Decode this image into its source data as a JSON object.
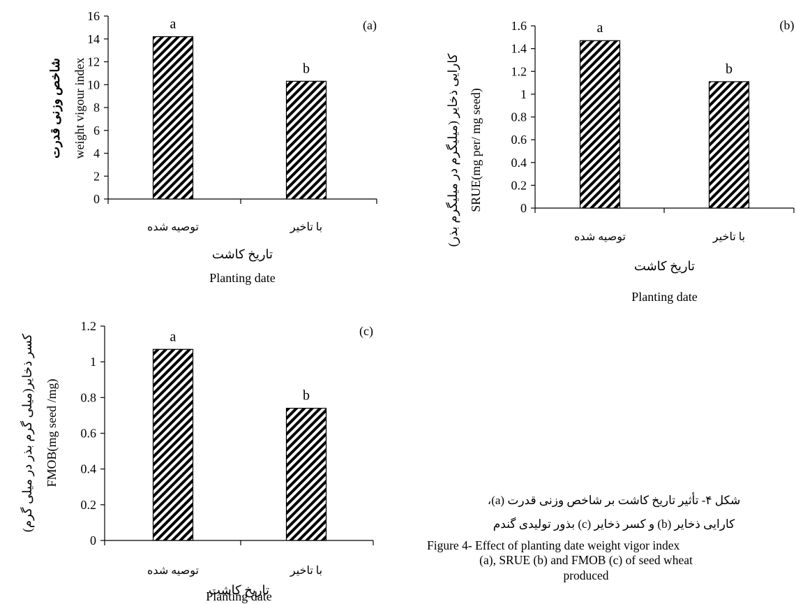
{
  "chart_data": [
    {
      "type": "bar",
      "panel_label": "(a)",
      "categories": [
        "توصیه شده",
        "با تاخیر"
      ],
      "values": [
        14.2,
        10.3
      ],
      "data_labels": [
        "a",
        "b"
      ],
      "ylim": [
        0,
        16
      ],
      "yticks": [
        "0",
        "2",
        "4",
        "6",
        "8",
        "10",
        "12",
        "14",
        "16"
      ],
      "ylabel_fa": "شاخص وزنی قدرت",
      "ylabel_en": "weight vigour index",
      "xlabel_fa": "تاریخ کاشت",
      "xlabel_en": "Planting date",
      "grid": false
    },
    {
      "type": "bar",
      "panel_label": "(b)",
      "categories": [
        "توصیه شده",
        "با تاخیر"
      ],
      "values": [
        1.47,
        1.11
      ],
      "data_labels": [
        "a",
        "b"
      ],
      "ylim": [
        0,
        1.6
      ],
      "yticks": [
        "0",
        "0.2",
        "0.4",
        "0.6",
        "0.8",
        "1",
        "1.2",
        "1.4",
        "1.6"
      ],
      "ylabel_fa": "کارایی ذخایر (میلیگرم در میلیگرم بذر)",
      "ylabel_en": "SRUE(mg per/ mg seed)",
      "xlabel_fa": "تاریخ کاشت",
      "xlabel_en": "Planting date",
      "grid": false
    },
    {
      "type": "bar",
      "panel_label": "(c)",
      "categories": [
        "توصیه شده",
        "با تاخیر"
      ],
      "values": [
        1.07,
        0.74
      ],
      "data_labels": [
        "a",
        "b"
      ],
      "ylim": [
        0,
        1.2
      ],
      "yticks": [
        "0",
        "0.2",
        "0.4",
        "0.6",
        "0.8",
        "1",
        "1.2"
      ],
      "ylabel_fa": "کسر ذخایر(میلی گرم بذر در میلی گرم)",
      "ylabel_en": "FMOB(mg seed /mg)",
      "xlabel_fa": "تاریخ کاشت",
      "xlabel_en": "Planting date",
      "grid": false
    }
  ],
  "caption": {
    "fa_line1": "شکل ۴- تأثیر تاریخ کاشت بر شاخص وزنی قدرت (a)،",
    "fa_line2": "کارایی ذخایر (b) و کسر ذخایر (c) بذور تولیدی گندم",
    "en_line1": "Figure 4- Effect of planting date weight vigor index",
    "en_line2": "(a), SRUE (b) and FMOB (c) of seed wheat",
    "en_line3": "produced"
  },
  "colors": {
    "bar_stroke": "#000000",
    "hatch": "#000000",
    "axis": "#000000"
  }
}
